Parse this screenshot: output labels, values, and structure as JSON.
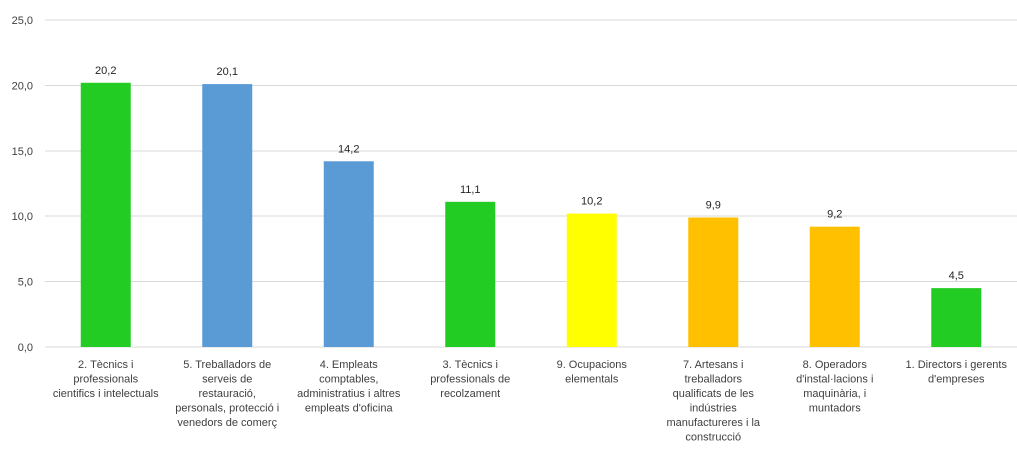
{
  "chart_data": {
    "type": "bar",
    "title": "",
    "xlabel": "",
    "ylabel": "",
    "ylim": [
      0,
      25
    ],
    "yticks": [
      "0,0",
      "5,0",
      "10,0",
      "15,0",
      "20,0",
      "25,0"
    ],
    "grid": true,
    "categories": [
      "2. Tècnics i professionals científics i intelectuals",
      "5. Treballadors de serveis de restauració, personals, protecció i venedors de comerç",
      "4. Empleats comptables, administratius i altres empleats d'oficina",
      "3. Tècnics i professionals de recolzament",
      "9. Ocupacions elementals",
      "7. Artesans i treballadors qualificats de les indústries manufactureres i la construcció",
      "8. Operadors d'instal·lacions i maquinària, i muntadors",
      "1. Directors i gerents d'empreses"
    ],
    "category_lines": [
      [
        "2. Tècnics i",
        "professionals",
        "cientifics i intelectuals"
      ],
      [
        "5. Treballadors de",
        "serveis de",
        "restauració,",
        "personals, protecció i",
        "venedors de comerç"
      ],
      [
        "4. Empleats",
        "comptables,",
        "administratius i altres",
        "empleats d'oficina"
      ],
      [
        "3. Tècnics i",
        "professionals de",
        "recolzament"
      ],
      [
        "9. Ocupacions",
        "elementals"
      ],
      [
        "7. Artesans i",
        "treballadors",
        "qualificats de les",
        "indústries",
        "manufactureres i la",
        "construcció"
      ],
      [
        "8. Operadors",
        "d'instal·lacions i",
        "maquinària, i",
        "muntadors"
      ],
      [
        "1. Directors i gerents",
        "d'empreses"
      ]
    ],
    "values": [
      20.2,
      20.1,
      14.2,
      11.1,
      10.2,
      9.9,
      9.2,
      4.5
    ],
    "value_labels": [
      "20,2",
      "20,1",
      "14,2",
      "11,1",
      "10,2",
      "9,9",
      "9,2",
      "4,5"
    ],
    "colors": [
      "#22cc22",
      "#5b9bd5",
      "#5b9bd5",
      "#22cc22",
      "#ffff00",
      "#ffc000",
      "#ffc000",
      "#22cc22"
    ]
  }
}
